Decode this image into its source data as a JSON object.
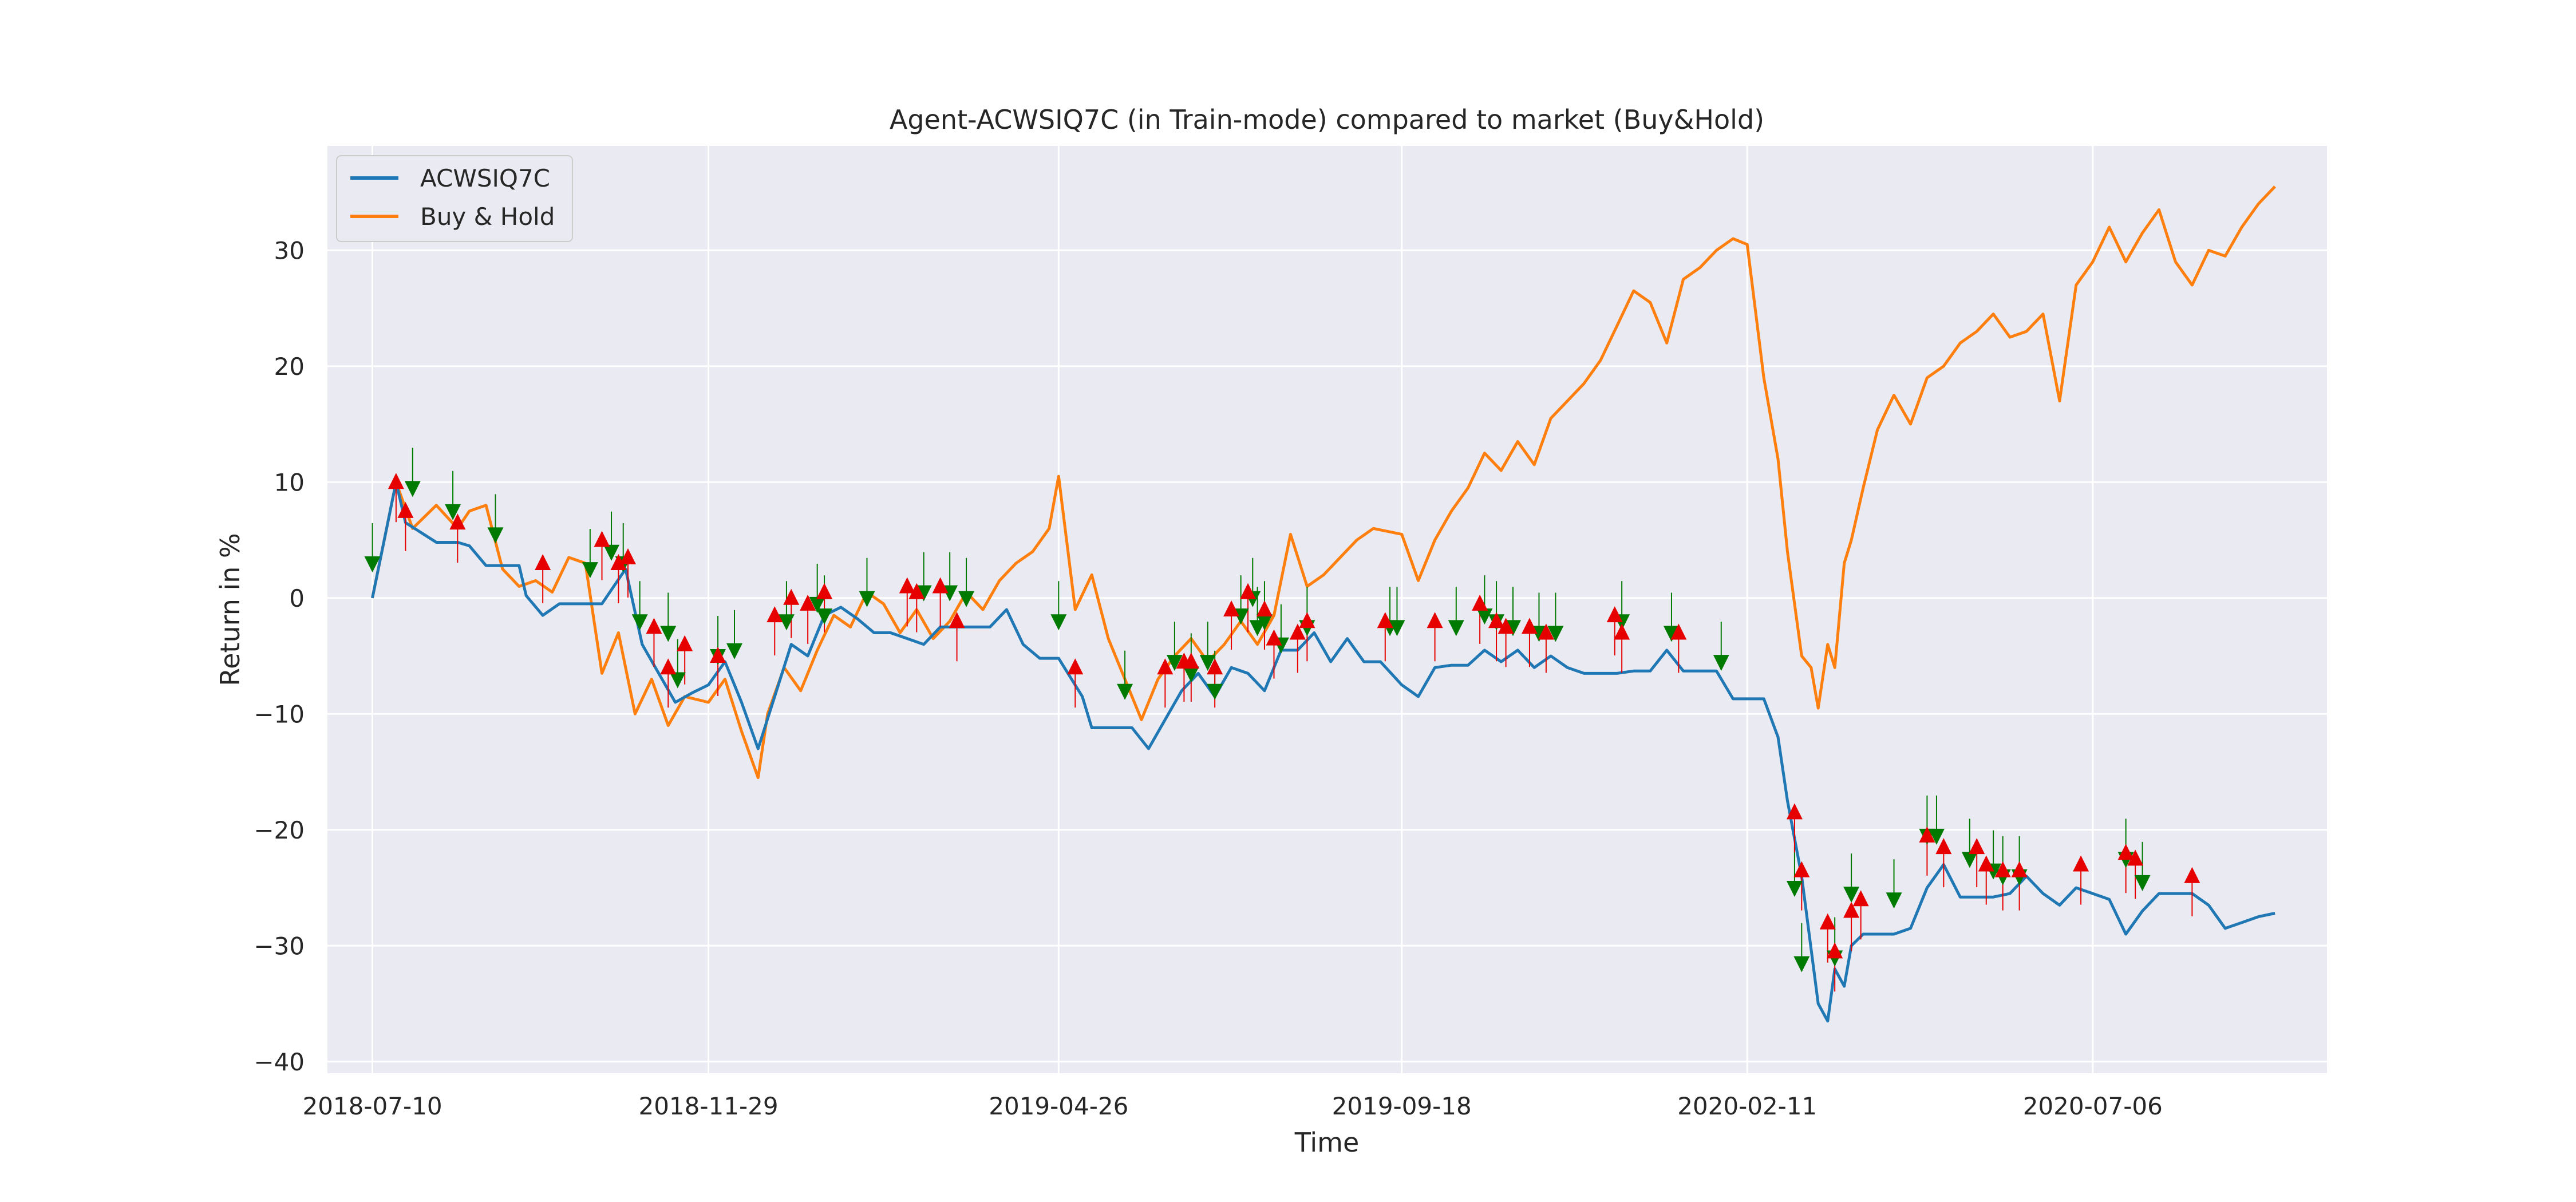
{
  "chart_data": {
    "type": "line",
    "title": "Agent-ACWSIQ7C (in Train-mode) compared to market (Buy&Hold)",
    "xlabel": "Time",
    "ylabel": "Return in %",
    "x_ticks": [
      "2018-07-10",
      "2018-11-29",
      "2019-04-26",
      "2019-09-18",
      "2020-02-11",
      "2020-07-06"
    ],
    "x_range": [
      "2018-06-21",
      "2020-10-13"
    ],
    "ylim": [
      -41,
      39
    ],
    "y_ticks": [
      -40,
      -30,
      -20,
      -10,
      0,
      10,
      20,
      30
    ],
    "grid": true,
    "legend_position": "top-left",
    "background": "#eaeaf2",
    "colors": {
      "agent": "#1f77b4",
      "buy_hold": "#ff7f0e",
      "buy_marker": "#e60000",
      "sell_marker": "#007a00"
    },
    "series": [
      {
        "name": "ACWSIQ7C",
        "color": "#1f77b4",
        "x": [
          "2018-07-10",
          "2018-07-20",
          "2018-07-24",
          "2018-08-06",
          "2018-08-15",
          "2018-08-20",
          "2018-08-27",
          "2018-09-10",
          "2018-09-13",
          "2018-09-20",
          "2018-09-27",
          "2018-10-08",
          "2018-10-15",
          "2018-10-25",
          "2018-11-01",
          "2018-11-08",
          "2018-11-15",
          "2018-11-22",
          "2018-11-29",
          "2018-12-06",
          "2018-12-13",
          "2018-12-20",
          "2018-12-27",
          "2019-01-03",
          "2019-01-10",
          "2019-01-17",
          "2019-01-24",
          "2019-01-31",
          "2019-02-07",
          "2019-02-14",
          "2019-02-21",
          "2019-02-28",
          "2019-03-07",
          "2019-03-14",
          "2019-03-21",
          "2019-03-28",
          "2019-04-04",
          "2019-04-11",
          "2019-04-18",
          "2019-04-26",
          "2019-05-06",
          "2019-05-10",
          "2019-05-20",
          "2019-05-27",
          "2019-06-03",
          "2019-06-10",
          "2019-06-17",
          "2019-06-24",
          "2019-07-01",
          "2019-07-08",
          "2019-07-15",
          "2019-07-22",
          "2019-07-29",
          "2019-08-05",
          "2019-08-12",
          "2019-08-19",
          "2019-08-26",
          "2019-09-02",
          "2019-09-09",
          "2019-09-18",
          "2019-09-25",
          "2019-10-02",
          "2019-10-09",
          "2019-10-16",
          "2019-10-23",
          "2019-10-30",
          "2019-11-06",
          "2019-11-13",
          "2019-11-20",
          "2019-11-27",
          "2019-12-04",
          "2019-12-11",
          "2019-12-18",
          "2019-12-25",
          "2020-01-01",
          "2020-01-08",
          "2020-01-15",
          "2020-01-22",
          "2020-01-29",
          "2020-02-05",
          "2020-02-11",
          "2020-02-18",
          "2020-02-24",
          "2020-02-28",
          "2020-03-05",
          "2020-03-12",
          "2020-03-16",
          "2020-03-19",
          "2020-03-23",
          "2020-03-26",
          "2020-03-31",
          "2020-04-06",
          "2020-04-13",
          "2020-04-20",
          "2020-04-27",
          "2020-05-04",
          "2020-05-11",
          "2020-05-18",
          "2020-05-25",
          "2020-06-01",
          "2020-06-08",
          "2020-06-15",
          "2020-06-22",
          "2020-06-29",
          "2020-07-06",
          "2020-07-13",
          "2020-07-20",
          "2020-07-27",
          "2020-08-03",
          "2020-08-10",
          "2020-08-17",
          "2020-08-24",
          "2020-08-31",
          "2020-09-07",
          "2020-09-14",
          "2020-09-21"
        ],
        "y": [
          0.0,
          10.0,
          6.5,
          4.8,
          4.8,
          4.5,
          2.8,
          2.8,
          0.2,
          -1.5,
          -0.5,
          -0.5,
          -0.5,
          2.5,
          -4.0,
          -6.5,
          -9.0,
          -8.2,
          -7.5,
          -5.5,
          -9.0,
          -13.0,
          -8.5,
          -4.0,
          -5.0,
          -1.5,
          -0.8,
          -1.8,
          -3.0,
          -3.0,
          -3.5,
          -4.0,
          -2.5,
          -2.5,
          -2.5,
          -2.5,
          -1.0,
          -4.0,
          -5.2,
          -5.2,
          -8.5,
          -11.2,
          -11.2,
          -11.2,
          -13.0,
          -10.5,
          -8.0,
          -6.5,
          -8.5,
          -6.0,
          -6.5,
          -8.0,
          -4.5,
          -4.5,
          -3.0,
          -5.5,
          -3.5,
          -5.5,
          -5.5,
          -7.5,
          -8.5,
          -6.0,
          -5.8,
          -5.8,
          -4.5,
          -5.5,
          -4.5,
          -6.0,
          -5.0,
          -6.0,
          -6.5,
          -6.5,
          -6.5,
          -6.3,
          -6.3,
          -4.5,
          -6.3,
          -6.3,
          -6.3,
          -8.7,
          -8.7,
          -8.7,
          -12.0,
          -17.5,
          -24.0,
          -35.0,
          -36.5,
          -32.0,
          -33.5,
          -30.0,
          -29.0,
          -29.0,
          -29.0,
          -28.5,
          -25.0,
          -23.0,
          -25.8,
          -25.8,
          -25.8,
          -25.5,
          -24.0,
          -25.5,
          -26.5,
          -25.0,
          -25.5,
          -26.0,
          -29.0,
          -27.0,
          -25.5,
          -25.5,
          -25.5,
          -26.5,
          -28.5,
          -28.0,
          -27.5,
          -27.2
        ]
      },
      {
        "name": "Buy & Hold",
        "color": "#ff7f0e",
        "x": [
          "2018-07-10",
          "2018-07-20",
          "2018-07-27",
          "2018-08-06",
          "2018-08-15",
          "2018-08-20",
          "2018-08-27",
          "2018-09-03",
          "2018-09-10",
          "2018-09-17",
          "2018-09-24",
          "2018-10-01",
          "2018-10-08",
          "2018-10-15",
          "2018-10-22",
          "2018-10-29",
          "2018-11-05",
          "2018-11-12",
          "2018-11-19",
          "2018-11-29",
          "2018-12-06",
          "2018-12-13",
          "2018-12-20",
          "2018-12-24",
          "2018-12-31",
          "2019-01-07",
          "2019-01-14",
          "2019-01-21",
          "2019-01-28",
          "2019-02-04",
          "2019-02-11",
          "2019-02-18",
          "2019-02-25",
          "2019-03-04",
          "2019-03-11",
          "2019-03-18",
          "2019-03-25",
          "2019-04-01",
          "2019-04-08",
          "2019-04-15",
          "2019-04-22",
          "2019-04-26",
          "2019-05-03",
          "2019-05-10",
          "2019-05-17",
          "2019-05-24",
          "2019-05-31",
          "2019-06-07",
          "2019-06-14",
          "2019-06-21",
          "2019-06-28",
          "2019-07-05",
          "2019-07-12",
          "2019-07-19",
          "2019-07-26",
          "2019-08-02",
          "2019-08-09",
          "2019-08-16",
          "2019-08-23",
          "2019-08-30",
          "2019-09-06",
          "2019-09-18",
          "2019-09-25",
          "2019-10-02",
          "2019-10-09",
          "2019-10-16",
          "2019-10-23",
          "2019-10-30",
          "2019-11-06",
          "2019-11-13",
          "2019-11-20",
          "2019-11-27",
          "2019-12-04",
          "2019-12-11",
          "2019-12-18",
          "2019-12-25",
          "2020-01-01",
          "2020-01-08",
          "2020-01-15",
          "2020-01-22",
          "2020-01-29",
          "2020-02-05",
          "2020-02-11",
          "2020-02-18",
          "2020-02-24",
          "2020-02-28",
          "2020-03-05",
          "2020-03-09",
          "2020-03-12",
          "2020-03-16",
          "2020-03-19",
          "2020-03-23",
          "2020-03-26",
          "2020-03-31",
          "2020-04-06",
          "2020-04-13",
          "2020-04-20",
          "2020-04-27",
          "2020-05-04",
          "2020-05-11",
          "2020-05-18",
          "2020-05-25",
          "2020-06-01",
          "2020-06-08",
          "2020-06-15",
          "2020-06-22",
          "2020-06-29",
          "2020-07-06",
          "2020-07-13",
          "2020-07-20",
          "2020-07-27",
          "2020-08-03",
          "2020-08-10",
          "2020-08-17",
          "2020-08-24",
          "2020-08-31",
          "2020-09-07",
          "2020-09-14",
          "2020-09-21"
        ],
        "y": [
          0.0,
          10.0,
          6.0,
          8.0,
          6.0,
          7.5,
          8.0,
          2.5,
          1.0,
          1.5,
          0.5,
          3.5,
          3.0,
          -6.5,
          -3.0,
          -10.0,
          -7.0,
          -11.0,
          -8.5,
          -9.0,
          -7.0,
          -11.5,
          -15.5,
          -10.0,
          -6.0,
          -8.0,
          -4.5,
          -1.5,
          -2.5,
          0.5,
          -0.5,
          -3.0,
          -1.0,
          -3.5,
          -2.0,
          0.5,
          -1.0,
          1.5,
          3.0,
          4.0,
          6.0,
          10.5,
          -1.0,
          2.0,
          -3.5,
          -7.0,
          -10.5,
          -7.0,
          -5.0,
          -3.5,
          -5.5,
          -4.0,
          -2.0,
          -4.0,
          -1.5,
          5.5,
          1.0,
          2.0,
          3.5,
          5.0,
          6.0,
          5.5,
          1.5,
          5.0,
          7.5,
          9.5,
          12.5,
          11.0,
          13.5,
          11.5,
          15.5,
          17.0,
          18.5,
          20.5,
          23.5,
          26.5,
          25.5,
          22.0,
          27.5,
          28.5,
          30.0,
          31.0,
          30.5,
          19.0,
          12.0,
          4.0,
          -5.0,
          -6.0,
          -9.5,
          -4.0,
          -6.0,
          3.0,
          5.0,
          9.5,
          14.5,
          17.5,
          15.0,
          19.0,
          20.0,
          22.0,
          23.0,
          24.5,
          22.5,
          23.0,
          24.5,
          17.0,
          27.0,
          29.0,
          32.0,
          29.0,
          31.5,
          33.5,
          29.0,
          27.0,
          30.0,
          29.5,
          32.0,
          34.0,
          35.5
        ]
      }
    ],
    "buy_markers": [
      {
        "x": "2018-07-20",
        "y": 10.0
      },
      {
        "x": "2018-07-24",
        "y": 7.5
      },
      {
        "x": "2018-08-15",
        "y": 6.5
      },
      {
        "x": "2018-09-20",
        "y": 3.0
      },
      {
        "x": "2018-10-15",
        "y": 5.0
      },
      {
        "x": "2018-10-22",
        "y": 3.0
      },
      {
        "x": "2018-10-26",
        "y": 3.5
      },
      {
        "x": "2018-11-06",
        "y": -2.5
      },
      {
        "x": "2018-11-12",
        "y": -6.0
      },
      {
        "x": "2018-11-19",
        "y": -4.0
      },
      {
        "x": "2018-12-03",
        "y": -5.0
      },
      {
        "x": "2018-12-27",
        "y": -1.5
      },
      {
        "x": "2019-01-03",
        "y": 0.0
      },
      {
        "x": "2019-01-10",
        "y": -0.5
      },
      {
        "x": "2019-01-17",
        "y": 0.5
      },
      {
        "x": "2019-02-21",
        "y": 1.0
      },
      {
        "x": "2019-02-25",
        "y": 0.5
      },
      {
        "x": "2019-03-07",
        "y": 1.0
      },
      {
        "x": "2019-03-14",
        "y": -2.0
      },
      {
        "x": "2019-05-03",
        "y": -6.0
      },
      {
        "x": "2019-06-10",
        "y": -6.0
      },
      {
        "x": "2019-06-18",
        "y": -5.5
      },
      {
        "x": "2019-06-21",
        "y": -5.5
      },
      {
        "x": "2019-07-01",
        "y": -6.0
      },
      {
        "x": "2019-07-08",
        "y": -1.0
      },
      {
        "x": "2019-07-15",
        "y": 0.5
      },
      {
        "x": "2019-07-22",
        "y": -1.0
      },
      {
        "x": "2019-07-26",
        "y": -3.5
      },
      {
        "x": "2019-08-05",
        "y": -3.0
      },
      {
        "x": "2019-08-09",
        "y": -2.0
      },
      {
        "x": "2019-09-11",
        "y": -2.0
      },
      {
        "x": "2019-10-02",
        "y": -2.0
      },
      {
        "x": "2019-10-21",
        "y": -0.5
      },
      {
        "x": "2019-10-28",
        "y": -2.0
      },
      {
        "x": "2019-11-01",
        "y": -2.5
      },
      {
        "x": "2019-11-11",
        "y": -2.5
      },
      {
        "x": "2019-11-18",
        "y": -3.0
      },
      {
        "x": "2019-12-17",
        "y": -1.5
      },
      {
        "x": "2019-12-20",
        "y": -3.0
      },
      {
        "x": "2020-01-13",
        "y": -3.0
      },
      {
        "x": "2020-03-02",
        "y": -18.5
      },
      {
        "x": "2020-03-05",
        "y": -23.5
      },
      {
        "x": "2020-03-16",
        "y": -28.0
      },
      {
        "x": "2020-03-19",
        "y": -30.5
      },
      {
        "x": "2020-03-26",
        "y": -27.0
      },
      {
        "x": "2020-03-30",
        "y": -26.0
      },
      {
        "x": "2020-04-27",
        "y": -20.5
      },
      {
        "x": "2020-05-04",
        "y": -21.5
      },
      {
        "x": "2020-05-18",
        "y": -21.5
      },
      {
        "x": "2020-05-22",
        "y": -23.0
      },
      {
        "x": "2020-05-29",
        "y": -23.5
      },
      {
        "x": "2020-06-05",
        "y": -23.5
      },
      {
        "x": "2020-07-01",
        "y": -23.0
      },
      {
        "x": "2020-07-20",
        "y": -22.0
      },
      {
        "x": "2020-07-24",
        "y": -22.5
      },
      {
        "x": "2020-08-17",
        "y": -24.0
      }
    ],
    "sell_markers": [
      {
        "x": "2018-07-10",
        "y": 3.0
      },
      {
        "x": "2018-07-27",
        "y": 9.5
      },
      {
        "x": "2018-08-13",
        "y": 7.5
      },
      {
        "x": "2018-08-31",
        "y": 5.5
      },
      {
        "x": "2018-10-10",
        "y": 2.5
      },
      {
        "x": "2018-10-19",
        "y": 4.0
      },
      {
        "x": "2018-10-24",
        "y": 3.0
      },
      {
        "x": "2018-10-31",
        "y": -2.0
      },
      {
        "x": "2018-11-12",
        "y": -3.0
      },
      {
        "x": "2018-11-16",
        "y": -7.0
      },
      {
        "x": "2018-12-03",
        "y": -5.0
      },
      {
        "x": "2018-12-10",
        "y": -4.5
      },
      {
        "x": "2019-01-01",
        "y": -2.0
      },
      {
        "x": "2019-01-14",
        "y": -0.5
      },
      {
        "x": "2019-01-17",
        "y": -1.5
      },
      {
        "x": "2019-02-04",
        "y": 0.0
      },
      {
        "x": "2019-02-28",
        "y": 0.5
      },
      {
        "x": "2019-03-11",
        "y": 0.5
      },
      {
        "x": "2019-03-18",
        "y": 0.0
      },
      {
        "x": "2019-04-26",
        "y": -2.0
      },
      {
        "x": "2019-05-24",
        "y": -8.0
      },
      {
        "x": "2019-06-14",
        "y": -5.5
      },
      {
        "x": "2019-06-21",
        "y": -6.5
      },
      {
        "x": "2019-06-28",
        "y": -5.5
      },
      {
        "x": "2019-07-01",
        "y": -8.0
      },
      {
        "x": "2019-07-12",
        "y": -1.5
      },
      {
        "x": "2019-07-17",
        "y": 0.0
      },
      {
        "x": "2019-07-19",
        "y": -2.5
      },
      {
        "x": "2019-07-22",
        "y": -2.0
      },
      {
        "x": "2019-07-29",
        "y": -4.0
      },
      {
        "x": "2019-08-09",
        "y": -2.5
      },
      {
        "x": "2019-09-13",
        "y": -2.5
      },
      {
        "x": "2019-09-16",
        "y": -2.5
      },
      {
        "x": "2019-10-11",
        "y": -2.5
      },
      {
        "x": "2019-10-23",
        "y": -1.5
      },
      {
        "x": "2019-10-28",
        "y": -2.0
      },
      {
        "x": "2019-11-04",
        "y": -2.5
      },
      {
        "x": "2019-11-15",
        "y": -3.0
      },
      {
        "x": "2019-11-22",
        "y": -3.0
      },
      {
        "x": "2019-12-20",
        "y": -2.0
      },
      {
        "x": "2020-01-10",
        "y": -3.0
      },
      {
        "x": "2020-01-31",
        "y": -5.5
      },
      {
        "x": "2020-03-02",
        "y": -25.0
      },
      {
        "x": "2020-03-05",
        "y": -31.5
      },
      {
        "x": "2020-03-19",
        "y": -31.0
      },
      {
        "x": "2020-03-26",
        "y": -25.5
      },
      {
        "x": "2020-04-13",
        "y": -26.0
      },
      {
        "x": "2020-04-27",
        "y": -20.5
      },
      {
        "x": "2020-05-01",
        "y": -20.5
      },
      {
        "x": "2020-05-15",
        "y": -22.5
      },
      {
        "x": "2020-05-25",
        "y": -23.5
      },
      {
        "x": "2020-05-29",
        "y": -24.0
      },
      {
        "x": "2020-06-05",
        "y": -24.0
      },
      {
        "x": "2020-07-20",
        "y": -22.5
      },
      {
        "x": "2020-07-27",
        "y": -24.5
      }
    ]
  }
}
